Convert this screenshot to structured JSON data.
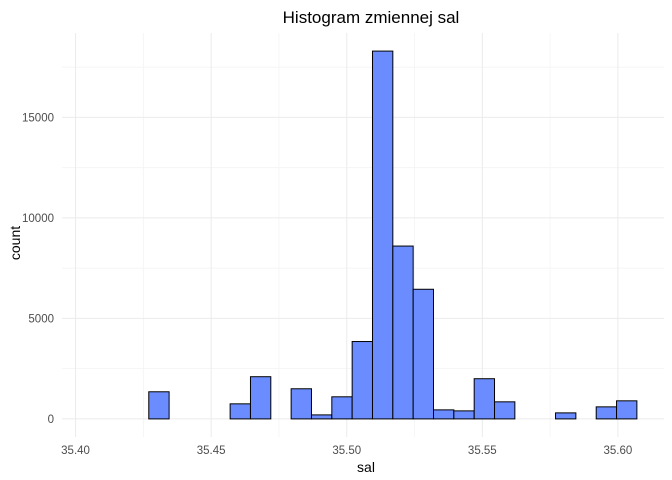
{
  "chart_data": {
    "type": "bar",
    "subtype": "histogram",
    "title": "Histogram zmiennej  sal",
    "xlabel": "sal",
    "ylabel": "count",
    "xlim": [
      35.395,
      35.617
    ],
    "ylim": [
      -900,
      19200
    ],
    "x_ticks": [
      35.4,
      35.45,
      35.5,
      35.55,
      35.6
    ],
    "x_tick_labels": [
      "35.40",
      "35.45",
      "35.50",
      "35.55",
      "35.60"
    ],
    "y_ticks": [
      0,
      5000,
      10000,
      15000
    ],
    "y_tick_labels": [
      "0",
      "5000",
      "10000",
      "15000"
    ],
    "bin_width": 0.0075,
    "bin_starts": [
      35.4045,
      35.412,
      35.4195,
      35.427,
      35.4345,
      35.442,
      35.4495,
      35.457,
      35.4645,
      35.472,
      35.4795,
      35.487,
      35.4945,
      35.502,
      35.5095,
      35.517,
      35.5245,
      35.532,
      35.5395,
      35.547,
      35.5545,
      35.562,
      35.5695,
      35.577,
      35.5845,
      35.592,
      35.5995,
      35.607
    ],
    "counts": [
      0,
      0,
      0,
      1350,
      0,
      0,
      0,
      750,
      2100,
      0,
      1500,
      200,
      1100,
      3850,
      18300,
      8600,
      6450,
      450,
      400,
      2000,
      850,
      0,
      0,
      300,
      0,
      600,
      900
    ],
    "bar_color": "#6688ff",
    "bar_border_color": "#000000",
    "grid": true,
    "legend": "none"
  }
}
